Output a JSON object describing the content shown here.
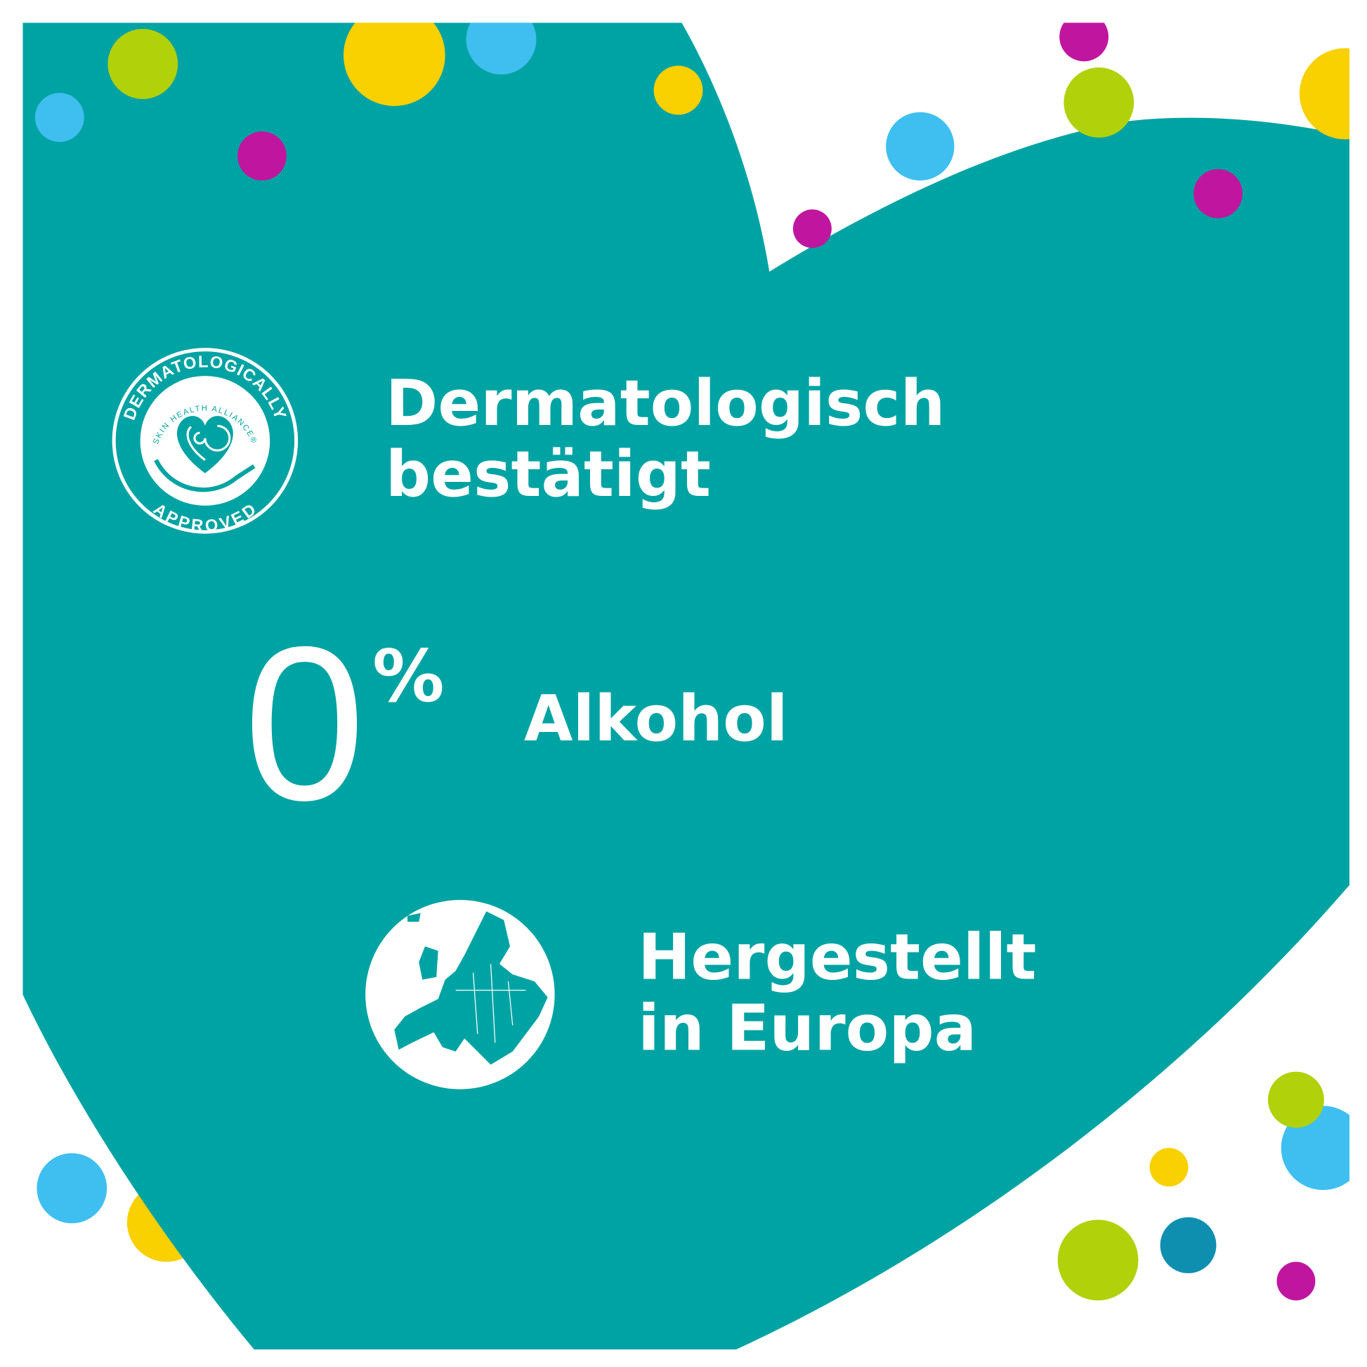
{
  "colors": {
    "teal": "#00a3a3",
    "green": "#b1d10a",
    "blue": "#3fbff0",
    "yellow": "#f9d000",
    "magenta": "#c0169f",
    "darkblue": "#0e8fb0",
    "white": "#ffffff"
  },
  "badge": {
    "top_text": "DERMATOLOGICALLY",
    "inner_text": "SKIN HEALTH ALLIANCE®",
    "bottom_text": "APPROVED",
    "icon": "fingerprint-heart-hand-icon"
  },
  "claims": {
    "derm_line1": "Dermatologisch",
    "derm_line2": "bestätigt",
    "zero": "0",
    "percent": "%",
    "alcohol": "Alkohol",
    "made_line1": "Hergestellt",
    "made_line2": "in Europa"
  },
  "globe_icon": "europe-globe-icon"
}
